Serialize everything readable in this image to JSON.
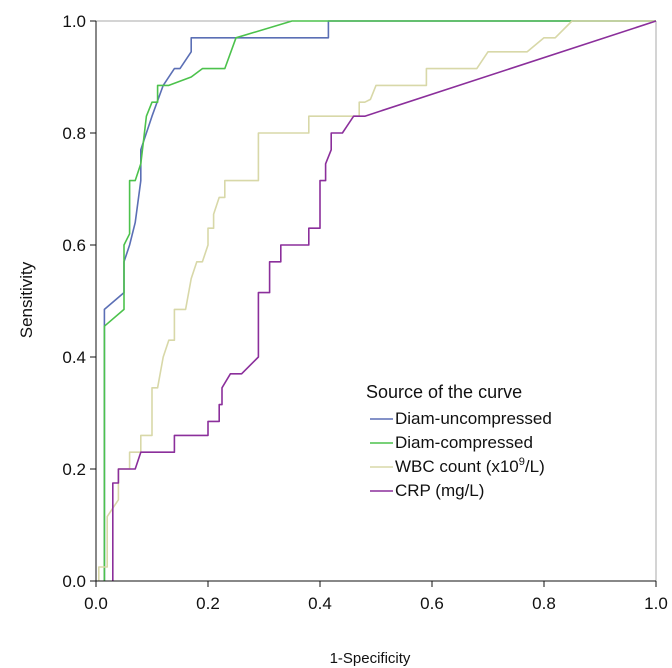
{
  "chart_data": {
    "type": "line",
    "title": "",
    "xlabel": "1-Specificity",
    "ylabel": "Sensitivity",
    "xlim": [
      0,
      1
    ],
    "ylim": [
      0,
      1
    ],
    "x_ticks": [
      "0.0",
      "0.2",
      "0.4",
      "0.6",
      "0.8",
      "1.0"
    ],
    "y_ticks": [
      "0.0",
      "0.2",
      "0.4",
      "0.6",
      "0.8",
      "1.0"
    ],
    "grid": false,
    "legend": {
      "title": "Source of the curve",
      "position": "lower-right"
    },
    "series": [
      {
        "name": "Diam-uncompressed",
        "color": "#5b6fb5",
        "points": [
          [
            0.015,
            0.0
          ],
          [
            0.015,
            0.485
          ],
          [
            0.05,
            0.515
          ],
          [
            0.05,
            0.57
          ],
          [
            0.06,
            0.6
          ],
          [
            0.07,
            0.64
          ],
          [
            0.08,
            0.715
          ],
          [
            0.08,
            0.77
          ],
          [
            0.1,
            0.83
          ],
          [
            0.12,
            0.885
          ],
          [
            0.14,
            0.915
          ],
          [
            0.15,
            0.915
          ],
          [
            0.17,
            0.945
          ],
          [
            0.17,
            0.97
          ],
          [
            0.2,
            0.97
          ],
          [
            0.415,
            0.97
          ],
          [
            0.415,
            1.0
          ],
          [
            1.0,
            1.0
          ]
        ]
      },
      {
        "name": "Diam-compressed",
        "color": "#4cc24c",
        "points": [
          [
            0.015,
            0.0
          ],
          [
            0.015,
            0.455
          ],
          [
            0.05,
            0.485
          ],
          [
            0.05,
            0.6
          ],
          [
            0.06,
            0.62
          ],
          [
            0.06,
            0.715
          ],
          [
            0.07,
            0.715
          ],
          [
            0.08,
            0.745
          ],
          [
            0.09,
            0.83
          ],
          [
            0.1,
            0.855
          ],
          [
            0.11,
            0.855
          ],
          [
            0.11,
            0.885
          ],
          [
            0.13,
            0.885
          ],
          [
            0.17,
            0.9
          ],
          [
            0.19,
            0.915
          ],
          [
            0.23,
            0.915
          ],
          [
            0.25,
            0.97
          ],
          [
            0.35,
            1.0
          ],
          [
            1.0,
            1.0
          ]
        ]
      },
      {
        "name": "WBC count (x10",
        "name_sup": "9",
        "name_suffix": "/L)",
        "color": "#d8d8a8",
        "points": [
          [
            0.005,
            0.0
          ],
          [
            0.005,
            0.025
          ],
          [
            0.02,
            0.025
          ],
          [
            0.02,
            0.115
          ],
          [
            0.04,
            0.145
          ],
          [
            0.04,
            0.2
          ],
          [
            0.06,
            0.2
          ],
          [
            0.06,
            0.23
          ],
          [
            0.08,
            0.23
          ],
          [
            0.08,
            0.26
          ],
          [
            0.1,
            0.26
          ],
          [
            0.1,
            0.345
          ],
          [
            0.11,
            0.345
          ],
          [
            0.12,
            0.4
          ],
          [
            0.13,
            0.43
          ],
          [
            0.14,
            0.43
          ],
          [
            0.14,
            0.485
          ],
          [
            0.16,
            0.485
          ],
          [
            0.17,
            0.54
          ],
          [
            0.18,
            0.57
          ],
          [
            0.19,
            0.57
          ],
          [
            0.2,
            0.6
          ],
          [
            0.2,
            0.63
          ],
          [
            0.21,
            0.63
          ],
          [
            0.21,
            0.655
          ],
          [
            0.22,
            0.685
          ],
          [
            0.23,
            0.685
          ],
          [
            0.23,
            0.715
          ],
          [
            0.29,
            0.715
          ],
          [
            0.29,
            0.8
          ],
          [
            0.38,
            0.8
          ],
          [
            0.38,
            0.83
          ],
          [
            0.47,
            0.83
          ],
          [
            0.47,
            0.855
          ],
          [
            0.48,
            0.855
          ],
          [
            0.49,
            0.86
          ],
          [
            0.5,
            0.885
          ],
          [
            0.59,
            0.885
          ],
          [
            0.59,
            0.915
          ],
          [
            0.68,
            0.915
          ],
          [
            0.7,
            0.945
          ],
          [
            0.77,
            0.945
          ],
          [
            0.8,
            0.97
          ],
          [
            0.82,
            0.97
          ],
          [
            0.85,
            1.0
          ],
          [
            1.0,
            1.0
          ]
        ]
      },
      {
        "name": "CRP (mg/L)",
        "color": "#8b2f9b",
        "points": [
          [
            0.03,
            0.0
          ],
          [
            0.03,
            0.175
          ],
          [
            0.04,
            0.175
          ],
          [
            0.04,
            0.2
          ],
          [
            0.07,
            0.2
          ],
          [
            0.08,
            0.23
          ],
          [
            0.14,
            0.23
          ],
          [
            0.14,
            0.26
          ],
          [
            0.2,
            0.26
          ],
          [
            0.2,
            0.285
          ],
          [
            0.22,
            0.285
          ],
          [
            0.22,
            0.315
          ],
          [
            0.225,
            0.315
          ],
          [
            0.225,
            0.345
          ],
          [
            0.24,
            0.37
          ],
          [
            0.26,
            0.37
          ],
          [
            0.29,
            0.4
          ],
          [
            0.29,
            0.515
          ],
          [
            0.31,
            0.515
          ],
          [
            0.31,
            0.57
          ],
          [
            0.33,
            0.57
          ],
          [
            0.33,
            0.6
          ],
          [
            0.35,
            0.6
          ],
          [
            0.38,
            0.6
          ],
          [
            0.38,
            0.63
          ],
          [
            0.4,
            0.63
          ],
          [
            0.4,
            0.715
          ],
          [
            0.41,
            0.715
          ],
          [
            0.41,
            0.745
          ],
          [
            0.42,
            0.77
          ],
          [
            0.42,
            0.8
          ],
          [
            0.44,
            0.8
          ],
          [
            0.46,
            0.83
          ],
          [
            0.48,
            0.83
          ],
          [
            1.0,
            1.0
          ]
        ]
      }
    ],
    "reference_line_color": "#aaaaaa"
  }
}
